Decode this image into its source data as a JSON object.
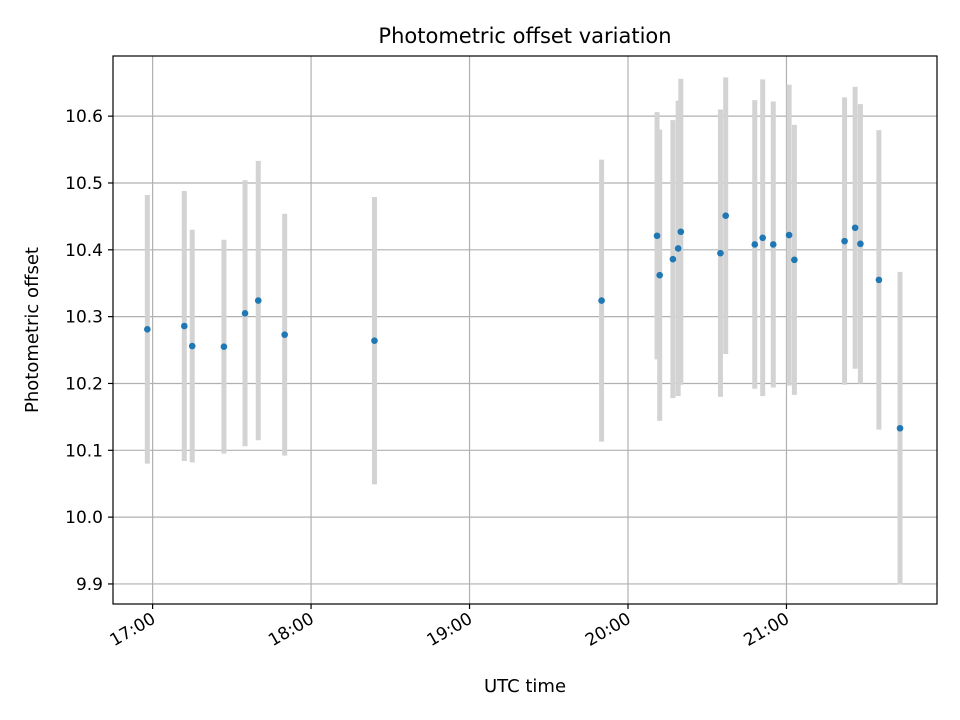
{
  "chart_data": {
    "type": "scatter",
    "title": "Photometric offset variation",
    "xlabel": "UTC time",
    "ylabel": "Photometric offset",
    "x_ticks": [
      "17:00",
      "18:00",
      "19:00",
      "20:00",
      "21:00"
    ],
    "x_tick_hours": [
      17,
      18,
      19,
      20,
      21
    ],
    "xlim": [
      "16:45",
      "21:57"
    ],
    "y_ticks": [
      "9.9",
      "10.0",
      "10.1",
      "10.2",
      "10.3",
      "10.4",
      "10.5",
      "10.6"
    ],
    "ylim": [
      9.87,
      10.69
    ],
    "grid": true,
    "colors": {
      "points": "#1f77b4",
      "errorbars": "#d3d3d3",
      "grid": "#b0b0b0"
    },
    "series": [
      {
        "points": [
          {
            "x": "16:58",
            "y": 10.281,
            "err": 0.201
          },
          {
            "x": "17:12",
            "y": 10.286,
            "err": 0.202
          },
          {
            "x": "17:15",
            "y": 10.256,
            "err": 0.174
          },
          {
            "x": "17:27",
            "y": 10.255,
            "err": 0.16
          },
          {
            "x": "17:35",
            "y": 10.305,
            "err": 0.199
          },
          {
            "x": "17:40",
            "y": 10.324,
            "err": 0.209
          },
          {
            "x": "17:50",
            "y": 10.273,
            "err": 0.181
          },
          {
            "x": "18:24",
            "y": 10.264,
            "err": 0.215
          },
          {
            "x": "19:50",
            "y": 10.324,
            "err": 0.211
          },
          {
            "x": "20:11",
            "y": 10.421,
            "err": 0.185
          },
          {
            "x": "20:12",
            "y": 10.362,
            "err": 0.218
          },
          {
            "x": "20:17",
            "y": 10.386,
            "err": 0.208
          },
          {
            "x": "20:19",
            "y": 10.402,
            "err": 0.221
          },
          {
            "x": "20:20",
            "y": 10.427,
            "err": 0.229
          },
          {
            "x": "20:35",
            "y": 10.395,
            "err": 0.215
          },
          {
            "x": "20:37",
            "y": 10.451,
            "err": 0.207
          },
          {
            "x": "20:48",
            "y": 10.408,
            "err": 0.216
          },
          {
            "x": "20:51",
            "y": 10.418,
            "err": 0.237
          },
          {
            "x": "20:55",
            "y": 10.408,
            "err": 0.214
          },
          {
            "x": "21:01",
            "y": 10.422,
            "err": 0.225
          },
          {
            "x": "21:03",
            "y": 10.385,
            "err": 0.202
          },
          {
            "x": "21:22",
            "y": 10.413,
            "err": 0.215
          },
          {
            "x": "21:26",
            "y": 10.433,
            "err": 0.211
          },
          {
            "x": "21:28",
            "y": 10.409,
            "err": 0.209
          },
          {
            "x": "21:35",
            "y": 10.355,
            "err": 0.224
          },
          {
            "x": "21:43",
            "y": 10.133,
            "err": 0.234
          }
        ]
      }
    ]
  }
}
